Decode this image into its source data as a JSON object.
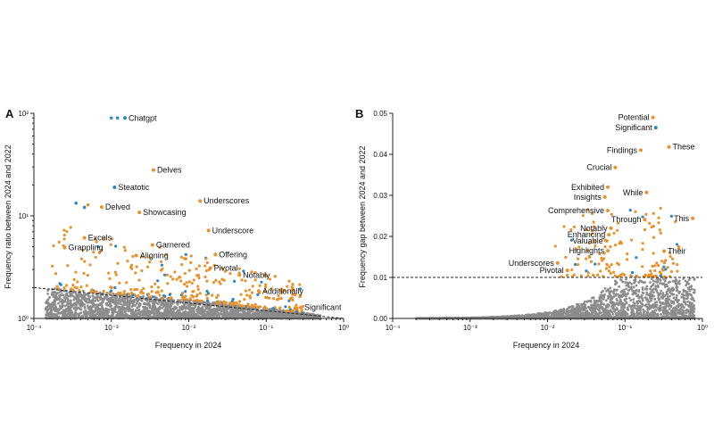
{
  "colors": {
    "background_points": "#8c8c8c",
    "highlight_orange": "#e8922e",
    "highlight_blue": "#2e86c1",
    "line": "#222222"
  },
  "chart_data": [
    {
      "type": "scatter",
      "panel": "A",
      "xlabel": "Frequency in 2024",
      "ylabel": "Frequency ratio between 2024 and 2022",
      "xscale": "log",
      "yscale": "log",
      "xlim": [
        0.0001,
        1
      ],
      "ylim": [
        1,
        100
      ],
      "x_ticks": [
        "10⁻⁴",
        "10⁻³",
        "10⁻²",
        "10⁻¹",
        "10⁰"
      ],
      "y_ticks": [
        "10⁰",
        "10¹",
        "10²"
      ],
      "x_tick_values": [
        0.0001,
        0.001,
        0.01,
        0.1,
        1
      ],
      "y_tick_values": [
        1,
        10,
        100
      ],
      "threshold_line": {
        "style": "dashed",
        "from": [
          0.0001,
          2.0
        ],
        "to": [
          1,
          1.0
        ]
      },
      "labeled_points": [
        {
          "word": "Chatgpt",
          "x": 0.0015,
          "y": 90,
          "color": "blue"
        },
        {
          "word": "Delves",
          "x": 0.0035,
          "y": 28,
          "color": "orange"
        },
        {
          "word": "Steatotic",
          "x": 0.0011,
          "y": 19,
          "color": "blue"
        },
        {
          "word": "Delved",
          "x": 0.00075,
          "y": 12.2,
          "color": "orange"
        },
        {
          "word": "Underscores",
          "x": 0.014,
          "y": 14,
          "color": "orange"
        },
        {
          "word": "Showcasing",
          "x": 0.0023,
          "y": 10.8,
          "color": "orange"
        },
        {
          "word": "Underscore",
          "x": 0.018,
          "y": 7.2,
          "color": "orange"
        },
        {
          "word": "Excels",
          "x": 0.00045,
          "y": 6.1,
          "color": "orange"
        },
        {
          "word": "Garnered",
          "x": 0.0034,
          "y": 5.2,
          "color": "orange"
        },
        {
          "word": "Grappling",
          "x": 0.00025,
          "y": 4.9,
          "color": "orange"
        },
        {
          "word": "Aligning",
          "x": 0.0021,
          "y": 4.1,
          "color": "orange"
        },
        {
          "word": "Offering",
          "x": 0.022,
          "y": 4.2,
          "color": "orange"
        },
        {
          "word": "Pivotal",
          "x": 0.019,
          "y": 3.1,
          "color": "orange"
        },
        {
          "word": "Notably",
          "x": 0.045,
          "y": 2.65,
          "color": "orange"
        },
        {
          "word": "Additionally",
          "x": 0.08,
          "y": 1.85,
          "color": "orange"
        },
        {
          "word": "Significant",
          "x": 0.28,
          "y": 1.28,
          "color": "orange"
        }
      ],
      "extra_points": [
        {
          "x": 0.0012,
          "y": 90,
          "color": "blue"
        },
        {
          "x": 0.001,
          "y": 90,
          "color": "blue"
        },
        {
          "x": 0.00035,
          "y": 13.3,
          "color": "blue"
        },
        {
          "x": 0.00045,
          "y": 12.1,
          "color": "blue"
        },
        {
          "x": 0.0005,
          "y": 12.8,
          "color": "orange"
        }
      ]
    },
    {
      "type": "scatter",
      "panel": "B",
      "xlabel": "Frequency in 2024",
      "ylabel": "Frequency gap between 2024 and 2022",
      "xscale": "log",
      "yscale": "linear",
      "xlim": [
        0.0001,
        1
      ],
      "ylim": [
        0,
        0.05
      ],
      "x_ticks": [
        "10⁻⁴",
        "10⁻³",
        "10⁻²",
        "10⁻¹",
        "10⁰"
      ],
      "y_ticks": [
        "0.00",
        "0.01",
        "0.02",
        "0.03",
        "0.04",
        "0.05"
      ],
      "x_tick_values": [
        0.0001,
        0.001,
        0.01,
        0.1,
        1
      ],
      "y_tick_values": [
        0,
        0.01,
        0.02,
        0.03,
        0.04,
        0.05
      ],
      "threshold_line": {
        "style": "dashed",
        "y": 0.01
      },
      "labeled_points": [
        {
          "word": "Potential",
          "x": 0.23,
          "y": 0.049,
          "color": "orange"
        },
        {
          "word": "Significant",
          "x": 0.25,
          "y": 0.0465,
          "color": "blue"
        },
        {
          "word": "These",
          "x": 0.37,
          "y": 0.0418,
          "color": "orange"
        },
        {
          "word": "Findings",
          "x": 0.16,
          "y": 0.041,
          "color": "orange"
        },
        {
          "word": "Crucial",
          "x": 0.075,
          "y": 0.0368,
          "color": "orange"
        },
        {
          "word": "Exhibited",
          "x": 0.06,
          "y": 0.032,
          "color": "orange"
        },
        {
          "word": "Insights",
          "x": 0.055,
          "y": 0.0296,
          "color": "orange"
        },
        {
          "word": "While",
          "x": 0.19,
          "y": 0.0307,
          "color": "orange"
        },
        {
          "word": "Comprehensive",
          "x": 0.06,
          "y": 0.0263,
          "color": "orange"
        },
        {
          "word": "Through",
          "x": 0.18,
          "y": 0.0241,
          "color": "orange"
        },
        {
          "word": "This",
          "x": 0.75,
          "y": 0.0244,
          "color": "orange"
        },
        {
          "word": "Notably",
          "x": 0.066,
          "y": 0.022,
          "color": "orange"
        },
        {
          "word": "Enhancing",
          "x": 0.062,
          "y": 0.0204,
          "color": "orange"
        },
        {
          "word": "Valuable",
          "x": 0.058,
          "y": 0.0189,
          "color": "orange"
        },
        {
          "word": "Highlights",
          "x": 0.06,
          "y": 0.0165,
          "color": "orange"
        },
        {
          "word": "Their",
          "x": 0.32,
          "y": 0.0164,
          "color": "orange"
        },
        {
          "word": "Underscores",
          "x": 0.0135,
          "y": 0.0135,
          "color": "orange"
        },
        {
          "word": "Pivotal",
          "x": 0.018,
          "y": 0.0117,
          "color": "orange"
        }
      ]
    }
  ],
  "panels": {
    "A": {
      "letter": "A",
      "xlabel": "Frequency in 2024",
      "ylabel": "Frequency ratio between 2024 and 2022"
    },
    "B": {
      "letter": "B",
      "xlabel": "Frequency in 2024",
      "ylabel": "Frequency gap between 2024 and 2022"
    }
  }
}
